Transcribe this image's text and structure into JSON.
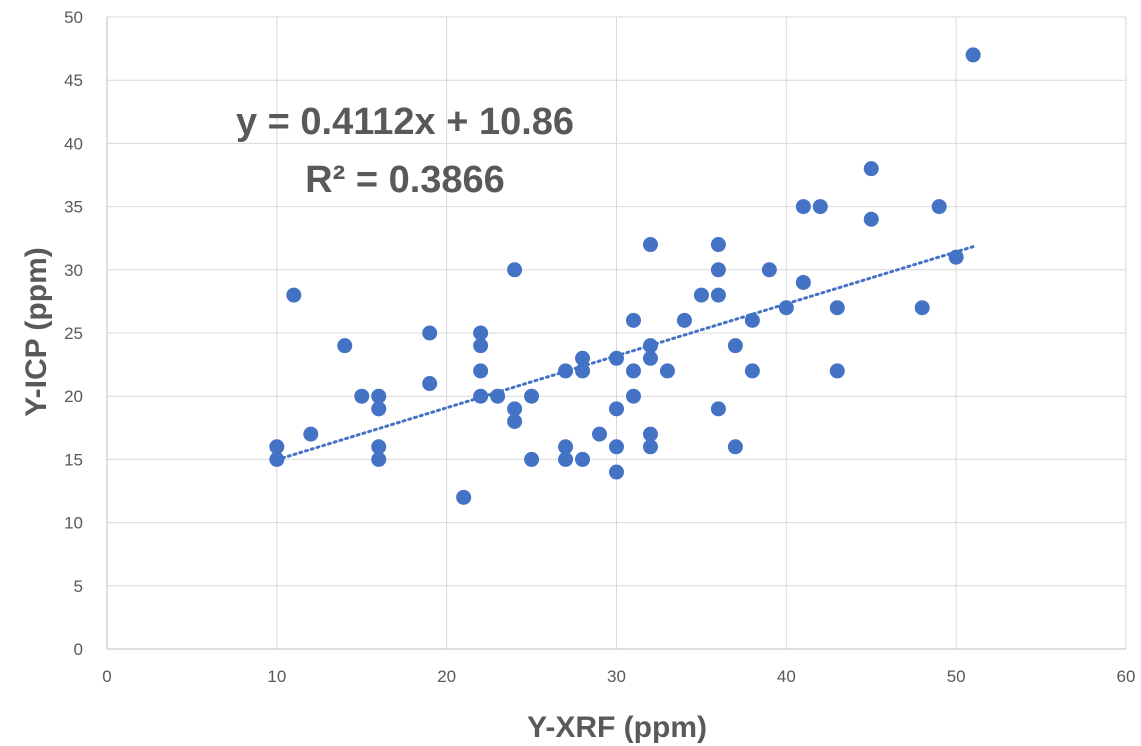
{
  "chart_data": {
    "type": "scatter",
    "title": "",
    "xlabel": "Y-XRF (ppm)",
    "ylabel": "Y-ICP (ppm)",
    "xlim": [
      0,
      60
    ],
    "ylim": [
      0,
      50
    ],
    "x_ticks": [
      0,
      10,
      20,
      30,
      40,
      50,
      60
    ],
    "y_ticks": [
      0,
      5,
      10,
      15,
      20,
      25,
      30,
      35,
      40,
      45,
      50
    ],
    "grid": true,
    "legend": "none",
    "colors": {
      "points": "#4472C4",
      "trendline": "#4472C4",
      "grid": "#d9d9d9",
      "text": "#595959"
    },
    "series": [
      {
        "points": [
          [
            10,
            16
          ],
          [
            10,
            15
          ],
          [
            11,
            28
          ],
          [
            12,
            17
          ],
          [
            14,
            24
          ],
          [
            15,
            20
          ],
          [
            16,
            20
          ],
          [
            16,
            19
          ],
          [
            16,
            16
          ],
          [
            16,
            15
          ],
          [
            19,
            25
          ],
          [
            19,
            21
          ],
          [
            21,
            12
          ],
          [
            22,
            25
          ],
          [
            22,
            24
          ],
          [
            22,
            22
          ],
          [
            22,
            20
          ],
          [
            23,
            20
          ],
          [
            24,
            30
          ],
          [
            24,
            19
          ],
          [
            24,
            18
          ],
          [
            25,
            20
          ],
          [
            25,
            15
          ],
          [
            27,
            22
          ],
          [
            27,
            16
          ],
          [
            27,
            15
          ],
          [
            28,
            23
          ],
          [
            28,
            22
          ],
          [
            28,
            15
          ],
          [
            29,
            17
          ],
          [
            30,
            23
          ],
          [
            30,
            19
          ],
          [
            30,
            16
          ],
          [
            30,
            14
          ],
          [
            31,
            26
          ],
          [
            31,
            22
          ],
          [
            31,
            20
          ],
          [
            32,
            32
          ],
          [
            32,
            24
          ],
          [
            32,
            23
          ],
          [
            32,
            17
          ],
          [
            32,
            16
          ],
          [
            33,
            22
          ],
          [
            34,
            26
          ],
          [
            35,
            28
          ],
          [
            36,
            32
          ],
          [
            36,
            30
          ],
          [
            36,
            28
          ],
          [
            36,
            19
          ],
          [
            37,
            24
          ],
          [
            37,
            16
          ],
          [
            38,
            26
          ],
          [
            38,
            22
          ],
          [
            39,
            30
          ],
          [
            40,
            27
          ],
          [
            41,
            35
          ],
          [
            41,
            29
          ],
          [
            42,
            35
          ],
          [
            43,
            27
          ],
          [
            43,
            22
          ],
          [
            45,
            38
          ],
          [
            45,
            34
          ],
          [
            48,
            27
          ],
          [
            49,
            35
          ],
          [
            50,
            31
          ],
          [
            51,
            47
          ]
        ]
      }
    ],
    "trendline": {
      "type": "linear",
      "slope": 0.4112,
      "intercept": 10.86,
      "x_range": [
        10,
        51
      ],
      "style": "dotted"
    },
    "annotations": {
      "equation": "y = 0.4112x + 10.86",
      "r_squared": "R² = 0.3866"
    }
  }
}
